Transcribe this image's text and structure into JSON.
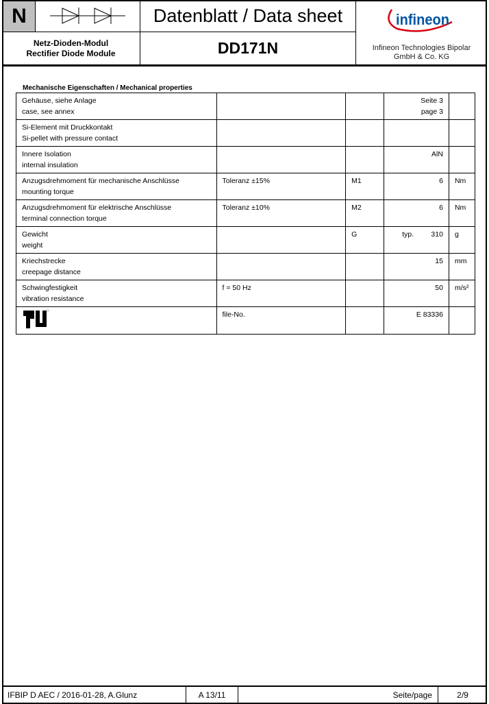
{
  "header": {
    "category_letter": "N",
    "symbol": "diode-pair-icon",
    "title": "Datenblatt / Data sheet",
    "subtitle_de": "Netz-Dioden-Modul",
    "subtitle_en": "Rectifier Diode Module",
    "part_number": "DD171N",
    "logo_text": "infineon",
    "company_line1": "Infineon Technologies Bipolar",
    "company_line2": "GmbH & Co. KG",
    "brand_color": "#0055a5",
    "arc_color": "#d7000f"
  },
  "section_title": "Mechanische Eigenschaften / Mechanical properties",
  "rows": [
    {
      "de": "Gehäuse, siehe Anlage",
      "en": "case, see annex",
      "cond": "",
      "sym": "",
      "typ": "",
      "val": "Seite 3",
      "val2": "page 3",
      "unit": ""
    },
    {
      "de": "Si-Element mit Druckkontakt",
      "en": "Si-pellet with pressure contact",
      "cond": "",
      "sym": "",
      "typ": "",
      "val": "",
      "val2": "",
      "unit": ""
    },
    {
      "de": "Innere Isolation",
      "en": "internal insulation",
      "cond": "",
      "sym": "",
      "typ": "",
      "val": "AlN",
      "val2": "",
      "unit": ""
    },
    {
      "de": "Anzugsdrehmoment für mechanische Anschlüsse",
      "en": "mounting torque",
      "cond": "Toleranz ±15%",
      "sym": "M1",
      "typ": "",
      "val": "6",
      "val2": "",
      "unit": "Nm"
    },
    {
      "de": "Anzugsdrehmoment für elektrische Anschlüsse",
      "en": "terminal connection torque",
      "cond": "Toleranz ±10%",
      "sym": "M2",
      "typ": "",
      "val": "6",
      "val2": "",
      "unit": "Nm"
    },
    {
      "de": "Gewicht",
      "en": "weight",
      "cond": "",
      "sym": "G",
      "typ": "typ.",
      "val": "310",
      "val2": "",
      "unit": "g"
    },
    {
      "de": "Kriechstrecke",
      "en": "creepage distance",
      "cond": "",
      "sym": "",
      "typ": "",
      "val": "15",
      "val2": "",
      "unit": "mm"
    },
    {
      "de": "Schwingfestigkeit",
      "en": "vibration resistance",
      "cond": "f = 50 Hz",
      "sym": "",
      "typ": "",
      "val": "50",
      "val2": "",
      "unit": "m/s²"
    }
  ],
  "ul_row": {
    "logo": "ul-recognized-icon",
    "cond": "file-No.",
    "val": "E 83336"
  },
  "footer": {
    "doc": "IFBIP D AEC / 2016-01-28, A.Glunz",
    "rev": "A 13/11",
    "page_label": "Seite/page",
    "page": "2/9"
  }
}
